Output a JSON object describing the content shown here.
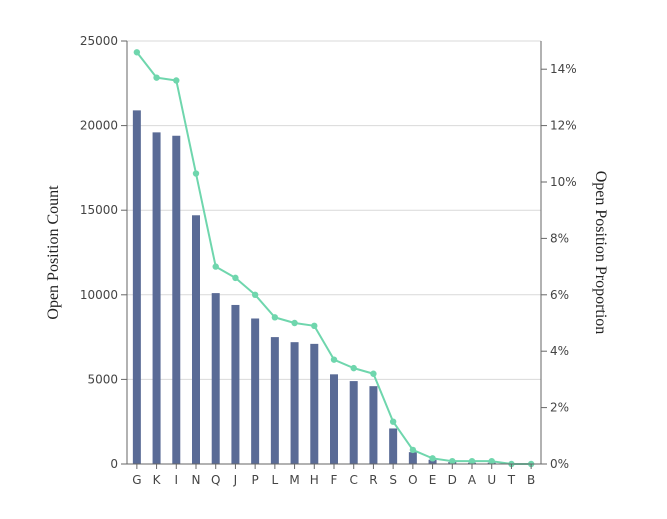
{
  "chart_data": {
    "type": "bar+line",
    "categories": [
      "G",
      "K",
      "I",
      "N",
      "Q",
      "J",
      "P",
      "L",
      "M",
      "H",
      "F",
      "C",
      "R",
      "S",
      "O",
      "E",
      "D",
      "A",
      "U",
      "T",
      "B"
    ],
    "series": [
      {
        "type": "bar",
        "axis": "left",
        "color": "#5a6b96",
        "values": [
          20900,
          19600,
          19400,
          14700,
          10100,
          9400,
          8600,
          7500,
          7200,
          7100,
          5300,
          4900,
          4600,
          2100,
          700,
          250,
          120,
          80,
          80,
          30,
          20
        ]
      },
      {
        "type": "line",
        "axis": "right",
        "color": "#6fd6ad",
        "values": [
          14.6,
          13.7,
          13.6,
          10.3,
          7.0,
          6.6,
          6.0,
          5.2,
          5.0,
          4.9,
          3.7,
          3.4,
          3.2,
          1.5,
          0.5,
          0.2,
          0.1,
          0.1,
          0.1,
          0.0,
          0.0
        ]
      }
    ],
    "ylabel": "Open Position Count",
    "y2label": "Open Position Proportion",
    "ylim": [
      0,
      25000
    ],
    "y2lim": [
      0,
      15
    ],
    "yticks": [
      "0",
      "5000",
      "10000",
      "15000",
      "20000",
      "25000"
    ],
    "y2ticks": [
      "0%",
      "2%",
      "4%",
      "6%",
      "8%",
      "10%",
      "12%",
      "14%"
    ],
    "grid": true,
    "legend": "none"
  }
}
